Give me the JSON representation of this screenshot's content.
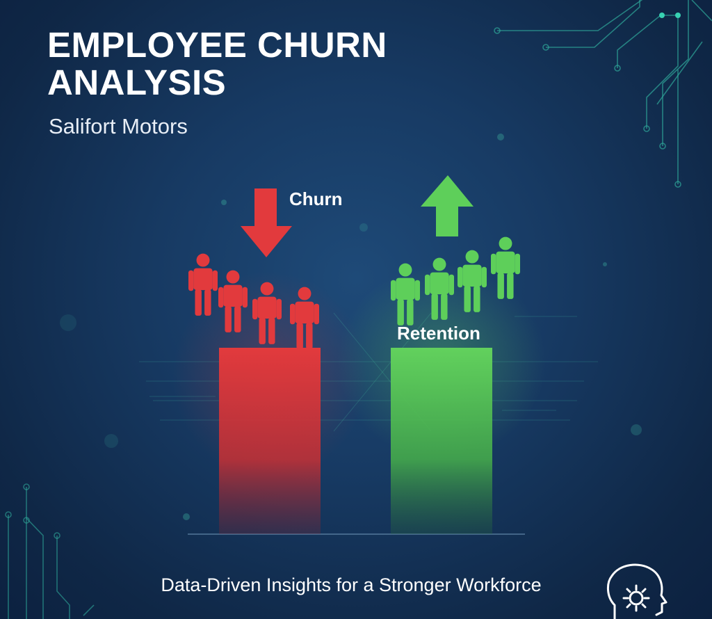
{
  "poster": {
    "title": "EMPLOYEE CHURN ANALYSIS",
    "subtitle": "Salifort Motors",
    "tagline": "Data-Driven Insights for a Stronger Workforce"
  },
  "bars": {
    "churn_label": "Churn",
    "retention_label": "Retention"
  },
  "colors": {
    "background": "#173a63",
    "churn": "#e23a3d",
    "retention": "#5ecf5a",
    "circuit": "#2fa89a"
  },
  "icons": {
    "churn_arrow": "arrow-down-icon",
    "retention_arrow": "arrow-up-icon",
    "person": "person-icon",
    "gear": "gear-head-icon"
  }
}
